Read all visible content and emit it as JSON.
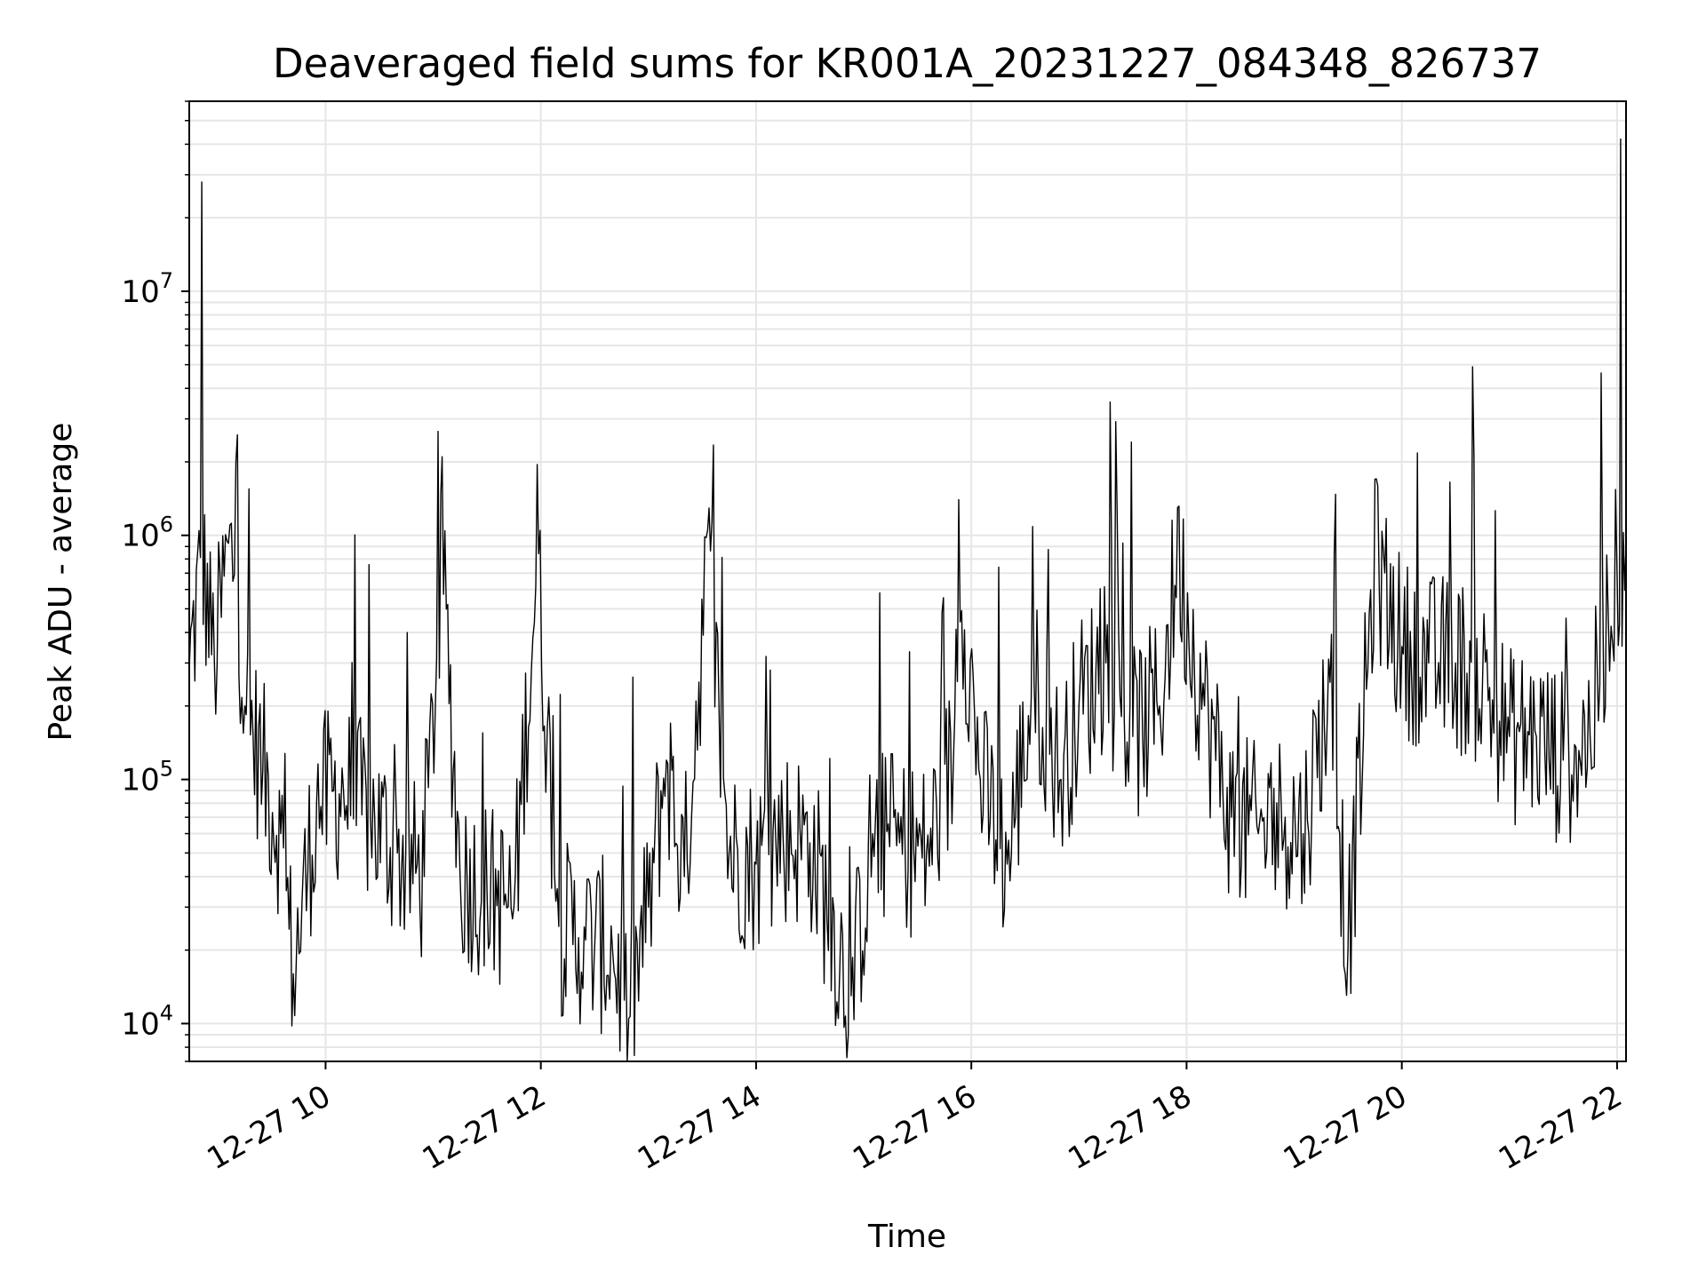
{
  "chart_data": {
    "type": "line",
    "title": "Deaveraged field sums for KR001A_20231227_084348_826737",
    "xlabel": "Time",
    "ylabel": "Peak ADU - average",
    "yscale": "log",
    "grid": true,
    "line_color": "#000000",
    "grid_color": "#e6e6e6",
    "xlim": [
      "2023-12-27 08:44",
      "2023-12-27 22:05"
    ],
    "ylim": [
      7000,
      60000000
    ],
    "x_ticks": [
      {
        "value": "2023-12-27 10:00",
        "label": "12-27 10"
      },
      {
        "value": "2023-12-27 12:00",
        "label": "12-27 12"
      },
      {
        "value": "2023-12-27 14:00",
        "label": "12-27 14"
      },
      {
        "value": "2023-12-27 16:00",
        "label": "12-27 16"
      },
      {
        "value": "2023-12-27 18:00",
        "label": "12-27 18"
      },
      {
        "value": "2023-12-27 20:00",
        "label": "12-27 20"
      },
      {
        "value": "2023-12-27 22:00",
        "label": "12-27 22"
      }
    ],
    "y_ticks": [
      {
        "value": 10000,
        "base": "10",
        "exp": "4"
      },
      {
        "value": 100000,
        "base": "10",
        "exp": "5"
      },
      {
        "value": 1000000,
        "base": "10",
        "exp": "6"
      },
      {
        "value": 10000000,
        "base": "10",
        "exp": "7"
      }
    ],
    "series": [
      {
        "points": [
          [
            "2023-12-27 08:44",
            280000
          ],
          [
            "2023-12-27 08:51",
            28000000
          ],
          [
            "2023-12-27 08:58",
            300000
          ],
          [
            "2023-12-27 09:05",
            950000
          ],
          [
            "2023-12-27 09:10",
            2000000
          ],
          [
            "2023-12-27 09:15",
            200000
          ],
          [
            "2023-12-27 09:25",
            110000
          ],
          [
            "2023-12-27 09:35",
            60000
          ],
          [
            "2023-12-27 09:42",
            16000
          ],
          [
            "2023-12-27 09:55",
            80000
          ],
          [
            "2023-12-27 10:10",
            90000
          ],
          [
            "2023-12-27 10:25",
            70000
          ],
          [
            "2023-12-27 10:40",
            50000
          ],
          [
            "2023-12-27 10:55",
            40000
          ],
          [
            "2023-12-27 11:05",
            2100000
          ],
          [
            "2023-12-27 11:15",
            40000
          ],
          [
            "2023-12-27 11:30",
            35000
          ],
          [
            "2023-12-27 11:45",
            30000
          ],
          [
            "2023-12-27 11:58",
            1950000
          ],
          [
            "2023-12-27 12:10",
            25000
          ],
          [
            "2023-12-27 12:25",
            22000
          ],
          [
            "2023-12-27 12:40",
            20000
          ],
          [
            "2023-12-27 12:49",
            10500
          ],
          [
            "2023-12-27 13:00",
            30000
          ],
          [
            "2023-12-27 13:10",
            120000
          ],
          [
            "2023-12-27 13:20",
            40000
          ],
          [
            "2023-12-27 13:33",
            1050000
          ],
          [
            "2023-12-27 13:45",
            50000
          ],
          [
            "2023-12-27 14:00",
            45000
          ],
          [
            "2023-12-27 14:15",
            60000
          ],
          [
            "2023-12-27 14:30",
            55000
          ],
          [
            "2023-12-27 14:53",
            13000
          ],
          [
            "2023-12-27 15:05",
            60000
          ],
          [
            "2023-12-27 15:20",
            55000
          ],
          [
            "2023-12-27 15:35",
            50000
          ],
          [
            "2023-12-27 15:50",
            120000
          ],
          [
            "2023-12-27 15:53",
            1400000
          ],
          [
            "2023-12-27 16:05",
            100000
          ],
          [
            "2023-12-27 16:20",
            45000
          ],
          [
            "2023-12-27 16:35",
            250000
          ],
          [
            "2023-12-27 16:50",
            100000
          ],
          [
            "2023-12-27 17:00",
            200000
          ],
          [
            "2023-12-27 17:15",
            300000
          ],
          [
            "2023-12-27 17:30",
            150000
          ],
          [
            "2023-12-27 17:45",
            200000
          ],
          [
            "2023-12-27 17:55",
            1300000
          ],
          [
            "2023-12-27 18:10",
            200000
          ],
          [
            "2023-12-27 18:25",
            70000
          ],
          [
            "2023-12-27 18:40",
            60000
          ],
          [
            "2023-12-27 18:55",
            70000
          ],
          [
            "2023-12-27 19:05",
            60000
          ],
          [
            "2023-12-27 19:20",
            250000
          ],
          [
            "2023-12-27 19:30",
            20000
          ],
          [
            "2023-12-27 19:45",
            1700000
          ],
          [
            "2023-12-27 20:00",
            350000
          ],
          [
            "2023-12-27 20:15",
            300000
          ],
          [
            "2023-12-27 20:30",
            300000
          ],
          [
            "2023-12-27 20:45",
            250000
          ],
          [
            "2023-12-27 21:00",
            150000
          ],
          [
            "2023-12-27 21:15",
            150000
          ],
          [
            "2023-12-27 21:30",
            120000
          ],
          [
            "2023-12-27 21:45",
            150000
          ],
          [
            "2023-12-27 21:55",
            500000
          ],
          [
            "2023-12-27 22:00",
            700000
          ],
          [
            "2023-12-27 22:02",
            42000000
          ],
          [
            "2023-12-27 22:05",
            900000
          ]
        ]
      }
    ]
  }
}
